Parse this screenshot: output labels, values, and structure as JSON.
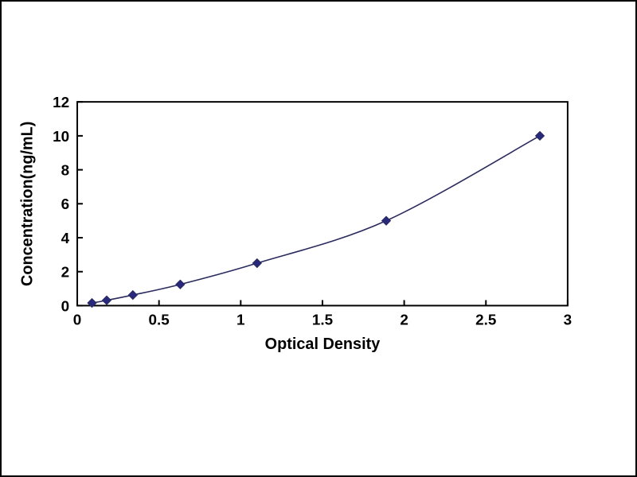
{
  "figure": {
    "background_color": "#ffffff",
    "border_color": "#000000"
  },
  "chart_data": {
    "type": "line",
    "title": "",
    "xlabel": "Optical Density",
    "ylabel": "Concentration(ng/mL)",
    "x": [
      0.09,
      0.18,
      0.34,
      0.63,
      1.1,
      1.89,
      2.83
    ],
    "y": [
      0.156,
      0.313,
      0.625,
      1.25,
      2.5,
      5.0,
      10.0
    ],
    "xlim": [
      0,
      3
    ],
    "ylim": [
      0,
      12
    ],
    "xticks": [
      0,
      0.5,
      1,
      1.5,
      2,
      2.5,
      3
    ],
    "xtick_labels": [
      "0",
      "0.5",
      "1",
      "1.5",
      "2",
      "2.5",
      "3"
    ],
    "yticks": [
      0,
      2,
      4,
      6,
      8,
      10,
      12
    ],
    "ytick_labels": [
      "0",
      "2",
      "4",
      "6",
      "8",
      "10",
      "12"
    ],
    "grid": false,
    "legend": "none",
    "marker": "diamond",
    "line_color": "#2b2b5e",
    "marker_color": "#28287d",
    "frame_color": "#000000"
  }
}
